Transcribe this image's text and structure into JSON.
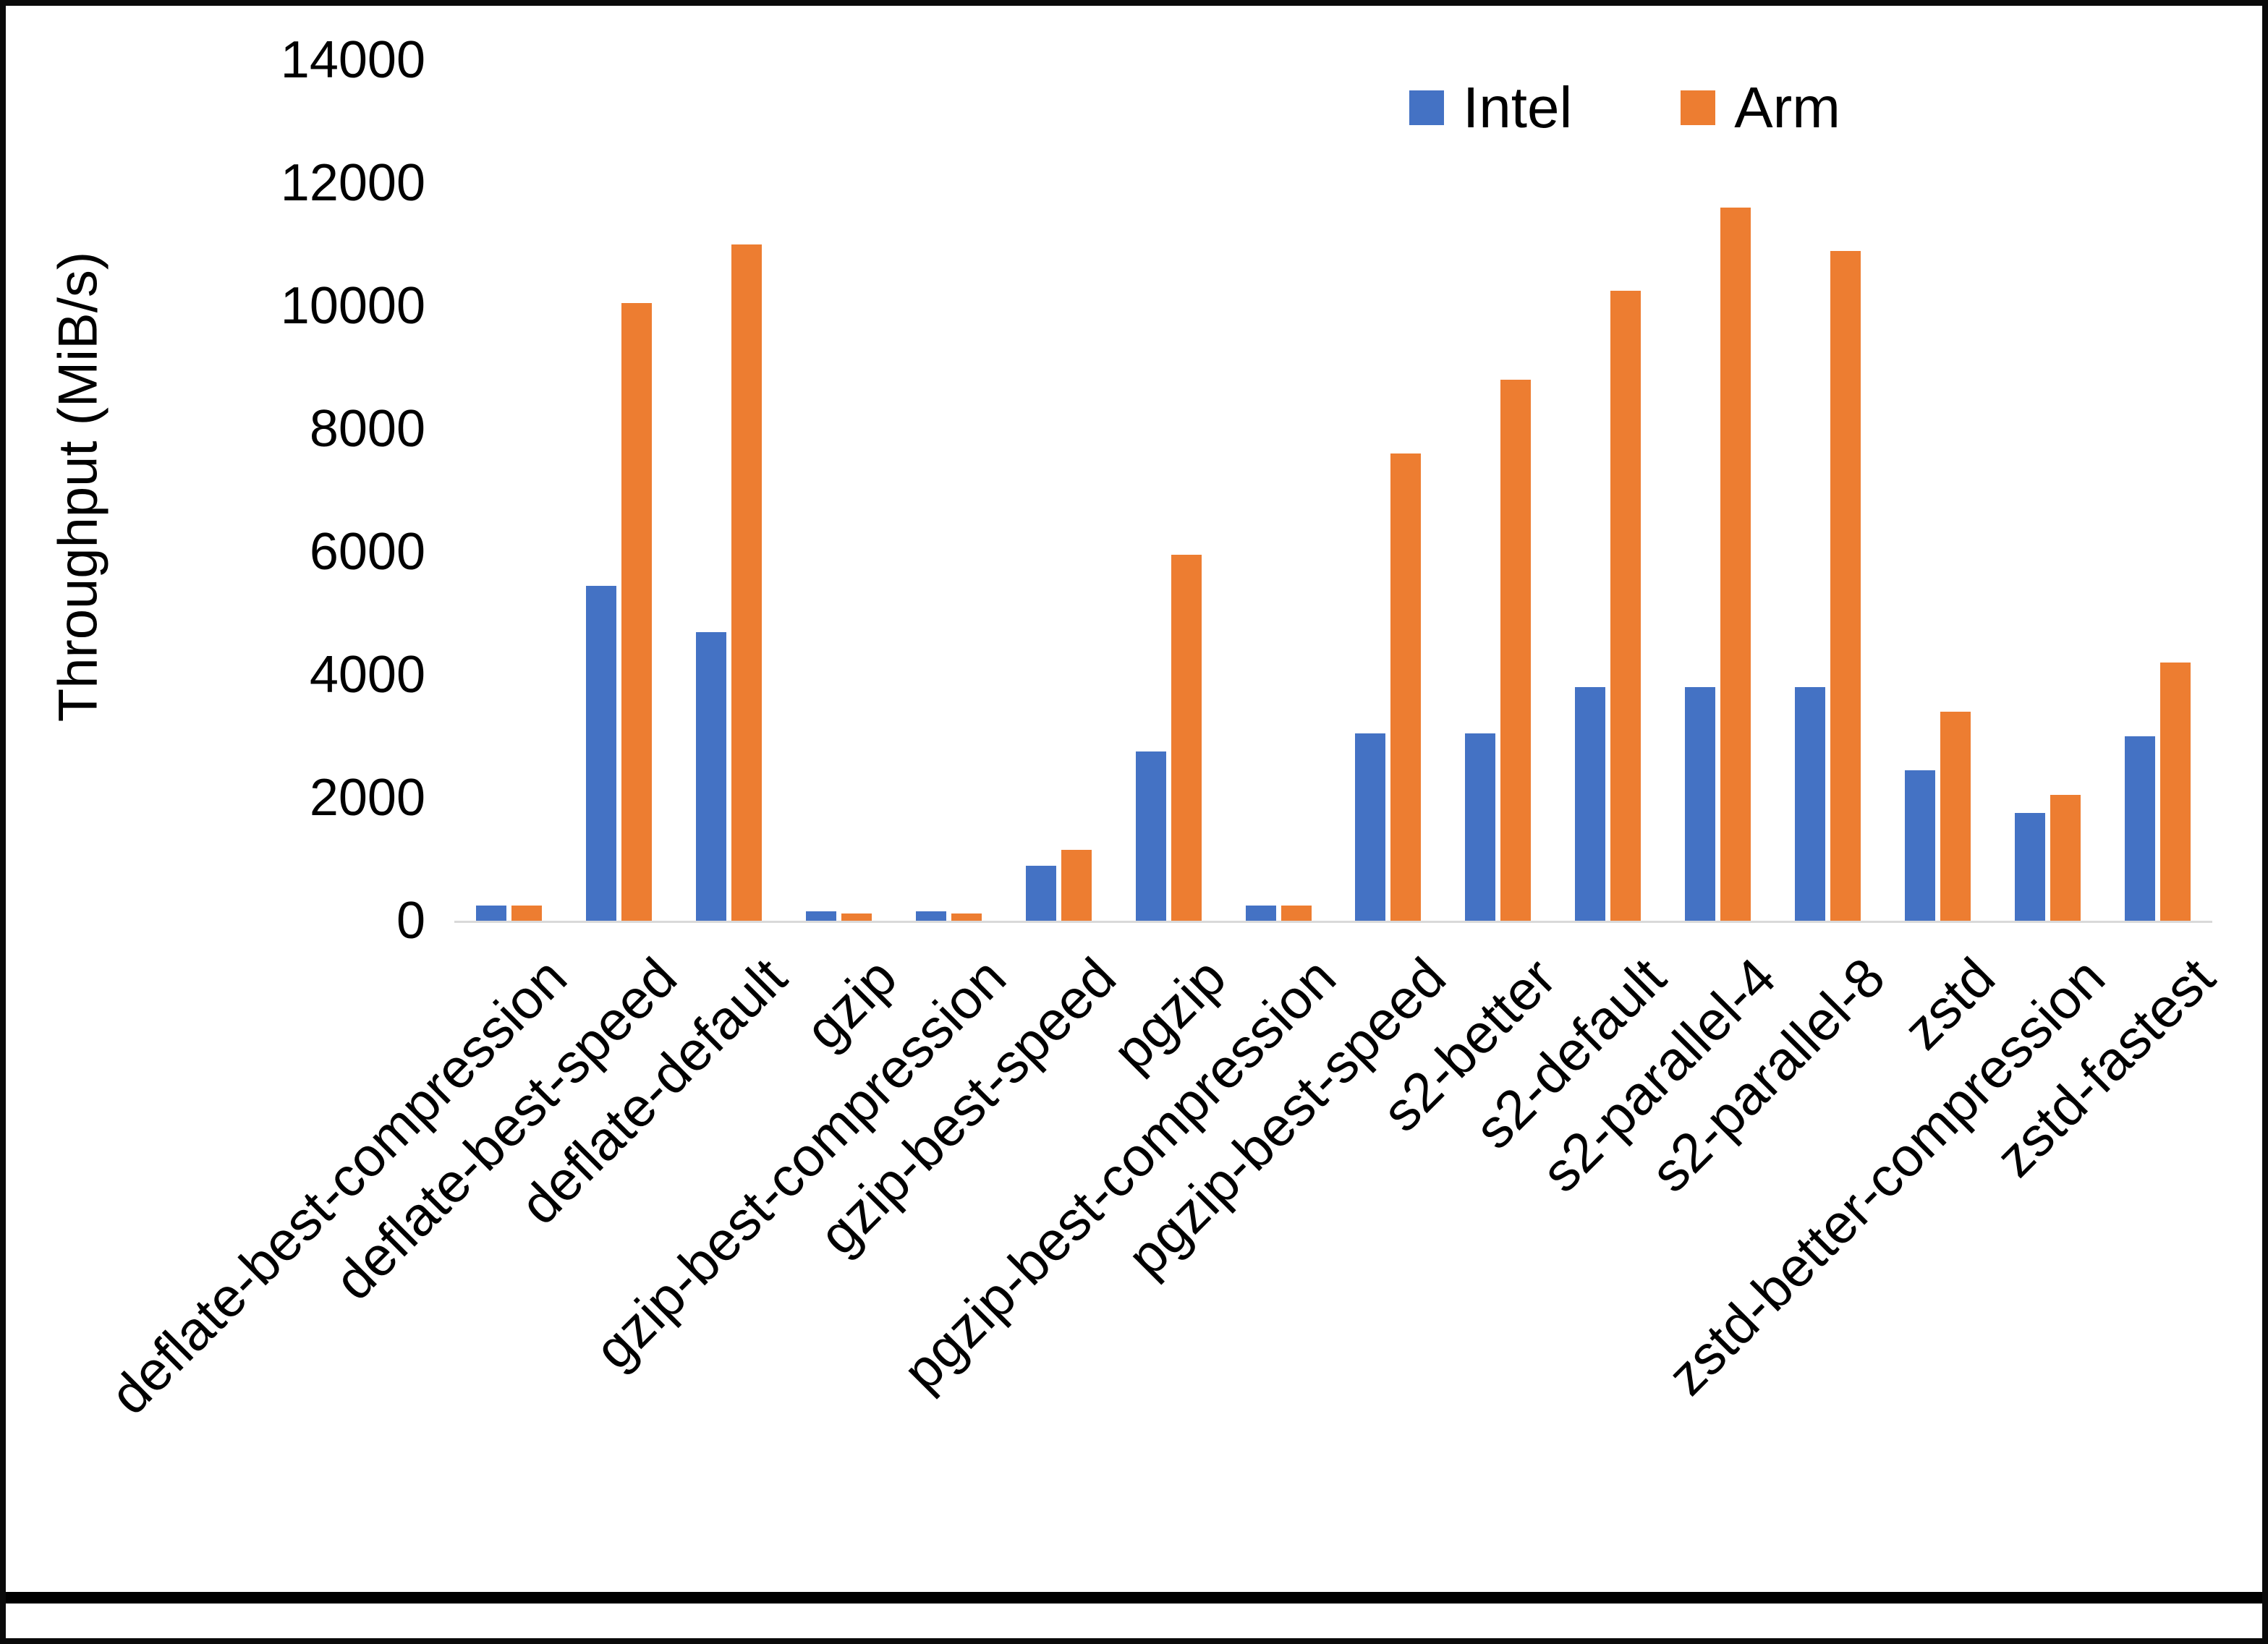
{
  "chart_data": {
    "type": "bar",
    "title": "",
    "xlabel": "",
    "ylabel": "Throughput (MiB/s)",
    "ylim": [
      0,
      14000
    ],
    "ytick_interval": 2000,
    "grid": false,
    "legend_position": "top-right",
    "categories": [
      "deflate-best-compression",
      "deflate-best-speed",
      "deflate-default",
      "gzip",
      "gzip-best-compression",
      "gzip-best-speed",
      "pgzip",
      "pgzip-best-compression",
      "pgzip-best-speed",
      "s2-better",
      "s2-default",
      "s2-parallel-4",
      "s2-parallel-8",
      "zstd",
      "zstd-better-compression",
      "zstd-fastest"
    ],
    "series": [
      {
        "name": "Intel",
        "color": "#4472C4",
        "values": [
          250,
          5450,
          4700,
          150,
          150,
          900,
          2750,
          250,
          3050,
          3050,
          3800,
          3800,
          3800,
          2450,
          1750,
          3000
        ]
      },
      {
        "name": "Arm",
        "color": "#ED7D31",
        "values": [
          250,
          10050,
          11000,
          120,
          120,
          1150,
          5950,
          250,
          7600,
          8800,
          10250,
          11600,
          10900,
          3400,
          2050,
          4200
        ]
      }
    ]
  }
}
